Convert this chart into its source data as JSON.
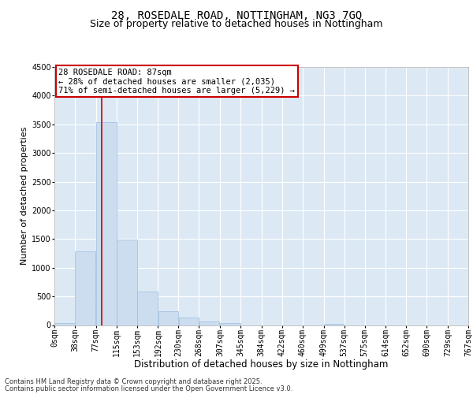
{
  "title": "28, ROSEDALE ROAD, NOTTINGHAM, NG3 7GQ",
  "subtitle": "Size of property relative to detached houses in Nottingham",
  "xlabel": "Distribution of detached houses by size in Nottingham",
  "ylabel": "Number of detached properties",
  "bar_color": "#ccddf0",
  "bar_edge_color": "#99bbdd",
  "property_line_color": "#cc0000",
  "property_size": 87,
  "annotation_text": "28 ROSEDALE ROAD: 87sqm\n← 28% of detached houses are smaller (2,035)\n71% of semi-detached houses are larger (5,229) →",
  "annotation_box_color": "#cc0000",
  "annotation_bg_color": "white",
  "bin_edges": [
    0,
    38,
    77,
    115,
    153,
    192,
    230,
    268,
    307,
    345,
    384,
    422,
    460,
    499,
    537,
    575,
    614,
    652,
    690,
    729,
    767
  ],
  "bin_labels": [
    "0sqm",
    "38sqm",
    "77sqm",
    "115sqm",
    "153sqm",
    "192sqm",
    "230sqm",
    "268sqm",
    "307sqm",
    "345sqm",
    "384sqm",
    "422sqm",
    "460sqm",
    "499sqm",
    "537sqm",
    "575sqm",
    "614sqm",
    "652sqm",
    "690sqm",
    "729sqm",
    "767sqm"
  ],
  "counts": [
    30,
    1280,
    3540,
    1490,
    590,
    245,
    130,
    65,
    35,
    0,
    0,
    0,
    0,
    25,
    0,
    0,
    0,
    0,
    0,
    0
  ],
  "ylim": [
    0,
    4500
  ],
  "background_color": "#dce9f5",
  "grid_color": "#ffffff",
  "footer_line1": "Contains HM Land Registry data © Crown copyright and database right 2025.",
  "footer_line2": "Contains public sector information licensed under the Open Government Licence v3.0.",
  "title_fontsize": 10,
  "subtitle_fontsize": 9,
  "xlabel_fontsize": 8.5,
  "ylabel_fontsize": 8,
  "tick_fontsize": 7,
  "footer_fontsize": 6,
  "annot_fontsize": 7.5
}
